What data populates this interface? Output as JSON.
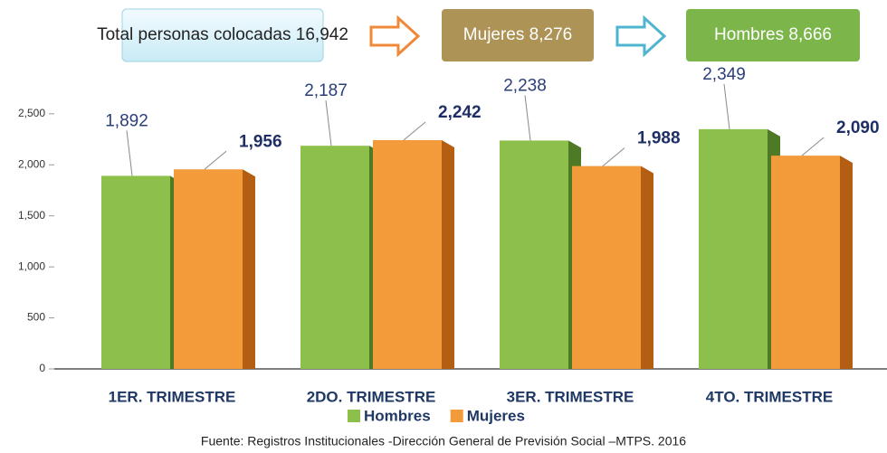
{
  "header": {
    "total": "Total personas colocadas  16,942",
    "mujeres": "Mujeres 8,276",
    "hombres": "Hombres 8,666"
  },
  "chart_data": {
    "type": "bar",
    "categories": [
      "1ER. TRIMESTRE",
      "2DO. TRIMESTRE",
      "3ER. TRIMESTRE",
      "4TO. TRIMESTRE"
    ],
    "series": [
      {
        "name": "Hombres",
        "color": "#8cc04a",
        "values": [
          1892,
          2187,
          2238,
          2349
        ],
        "value_labels": [
          "1,892",
          "2,187",
          "2,238",
          "2,349"
        ]
      },
      {
        "name": "Mujeres",
        "color": "#f39b3a",
        "values": [
          1956,
          2242,
          1988,
          2090
        ],
        "value_labels": [
          "1,956",
          "2,242",
          "1,988",
          "2,090"
        ]
      }
    ],
    "ylim": [
      0,
      2800
    ],
    "yticks": [
      0,
      500,
      {
        "value": 1000,
        "label": "1,000"
      },
      {
        "value": 1500,
        "label": "1,500"
      },
      {
        "value": 2000,
        "label": "2,000"
      },
      {
        "value": 2500,
        "label": "2,500"
      }
    ],
    "legend": "bottom",
    "source": "Fuente: Registros Institucionales -Dirección General de Previsión Social –MTPS. 2016"
  }
}
